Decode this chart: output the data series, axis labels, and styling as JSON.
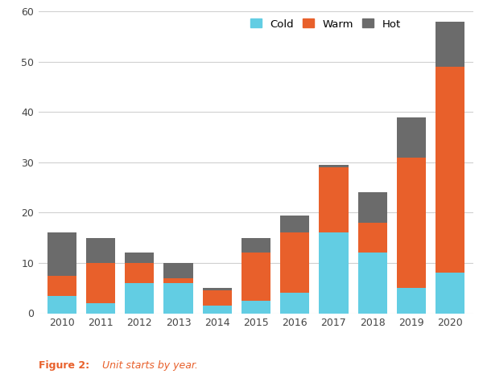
{
  "years": [
    2010,
    2011,
    2012,
    2013,
    2014,
    2015,
    2016,
    2017,
    2018,
    2019,
    2020
  ],
  "cold": [
    3.5,
    2.0,
    6.0,
    6.0,
    1.5,
    2.5,
    4.0,
    16.0,
    12.0,
    5.0,
    8.0
  ],
  "warm": [
    4.0,
    8.0,
    4.0,
    1.0,
    3.0,
    9.5,
    12.0,
    13.0,
    6.0,
    26.0,
    41.0
  ],
  "hot": [
    8.5,
    5.0,
    2.0,
    3.0,
    0.5,
    3.0,
    3.5,
    0.5,
    6.0,
    8.0,
    9.0
  ],
  "color_cold": "#62cde3",
  "color_warm": "#e8602b",
  "color_hot": "#6b6b6b",
  "ylim": [
    0,
    60
  ],
  "yticks": [
    0,
    10,
    20,
    30,
    40,
    50,
    60
  ],
  "figure_caption_bold": "Figure 2:",
  "figure_caption_italic": " Unit starts by year.",
  "background_color": "#ffffff",
  "grid_color": "#d0d0d0",
  "bar_width": 0.75
}
